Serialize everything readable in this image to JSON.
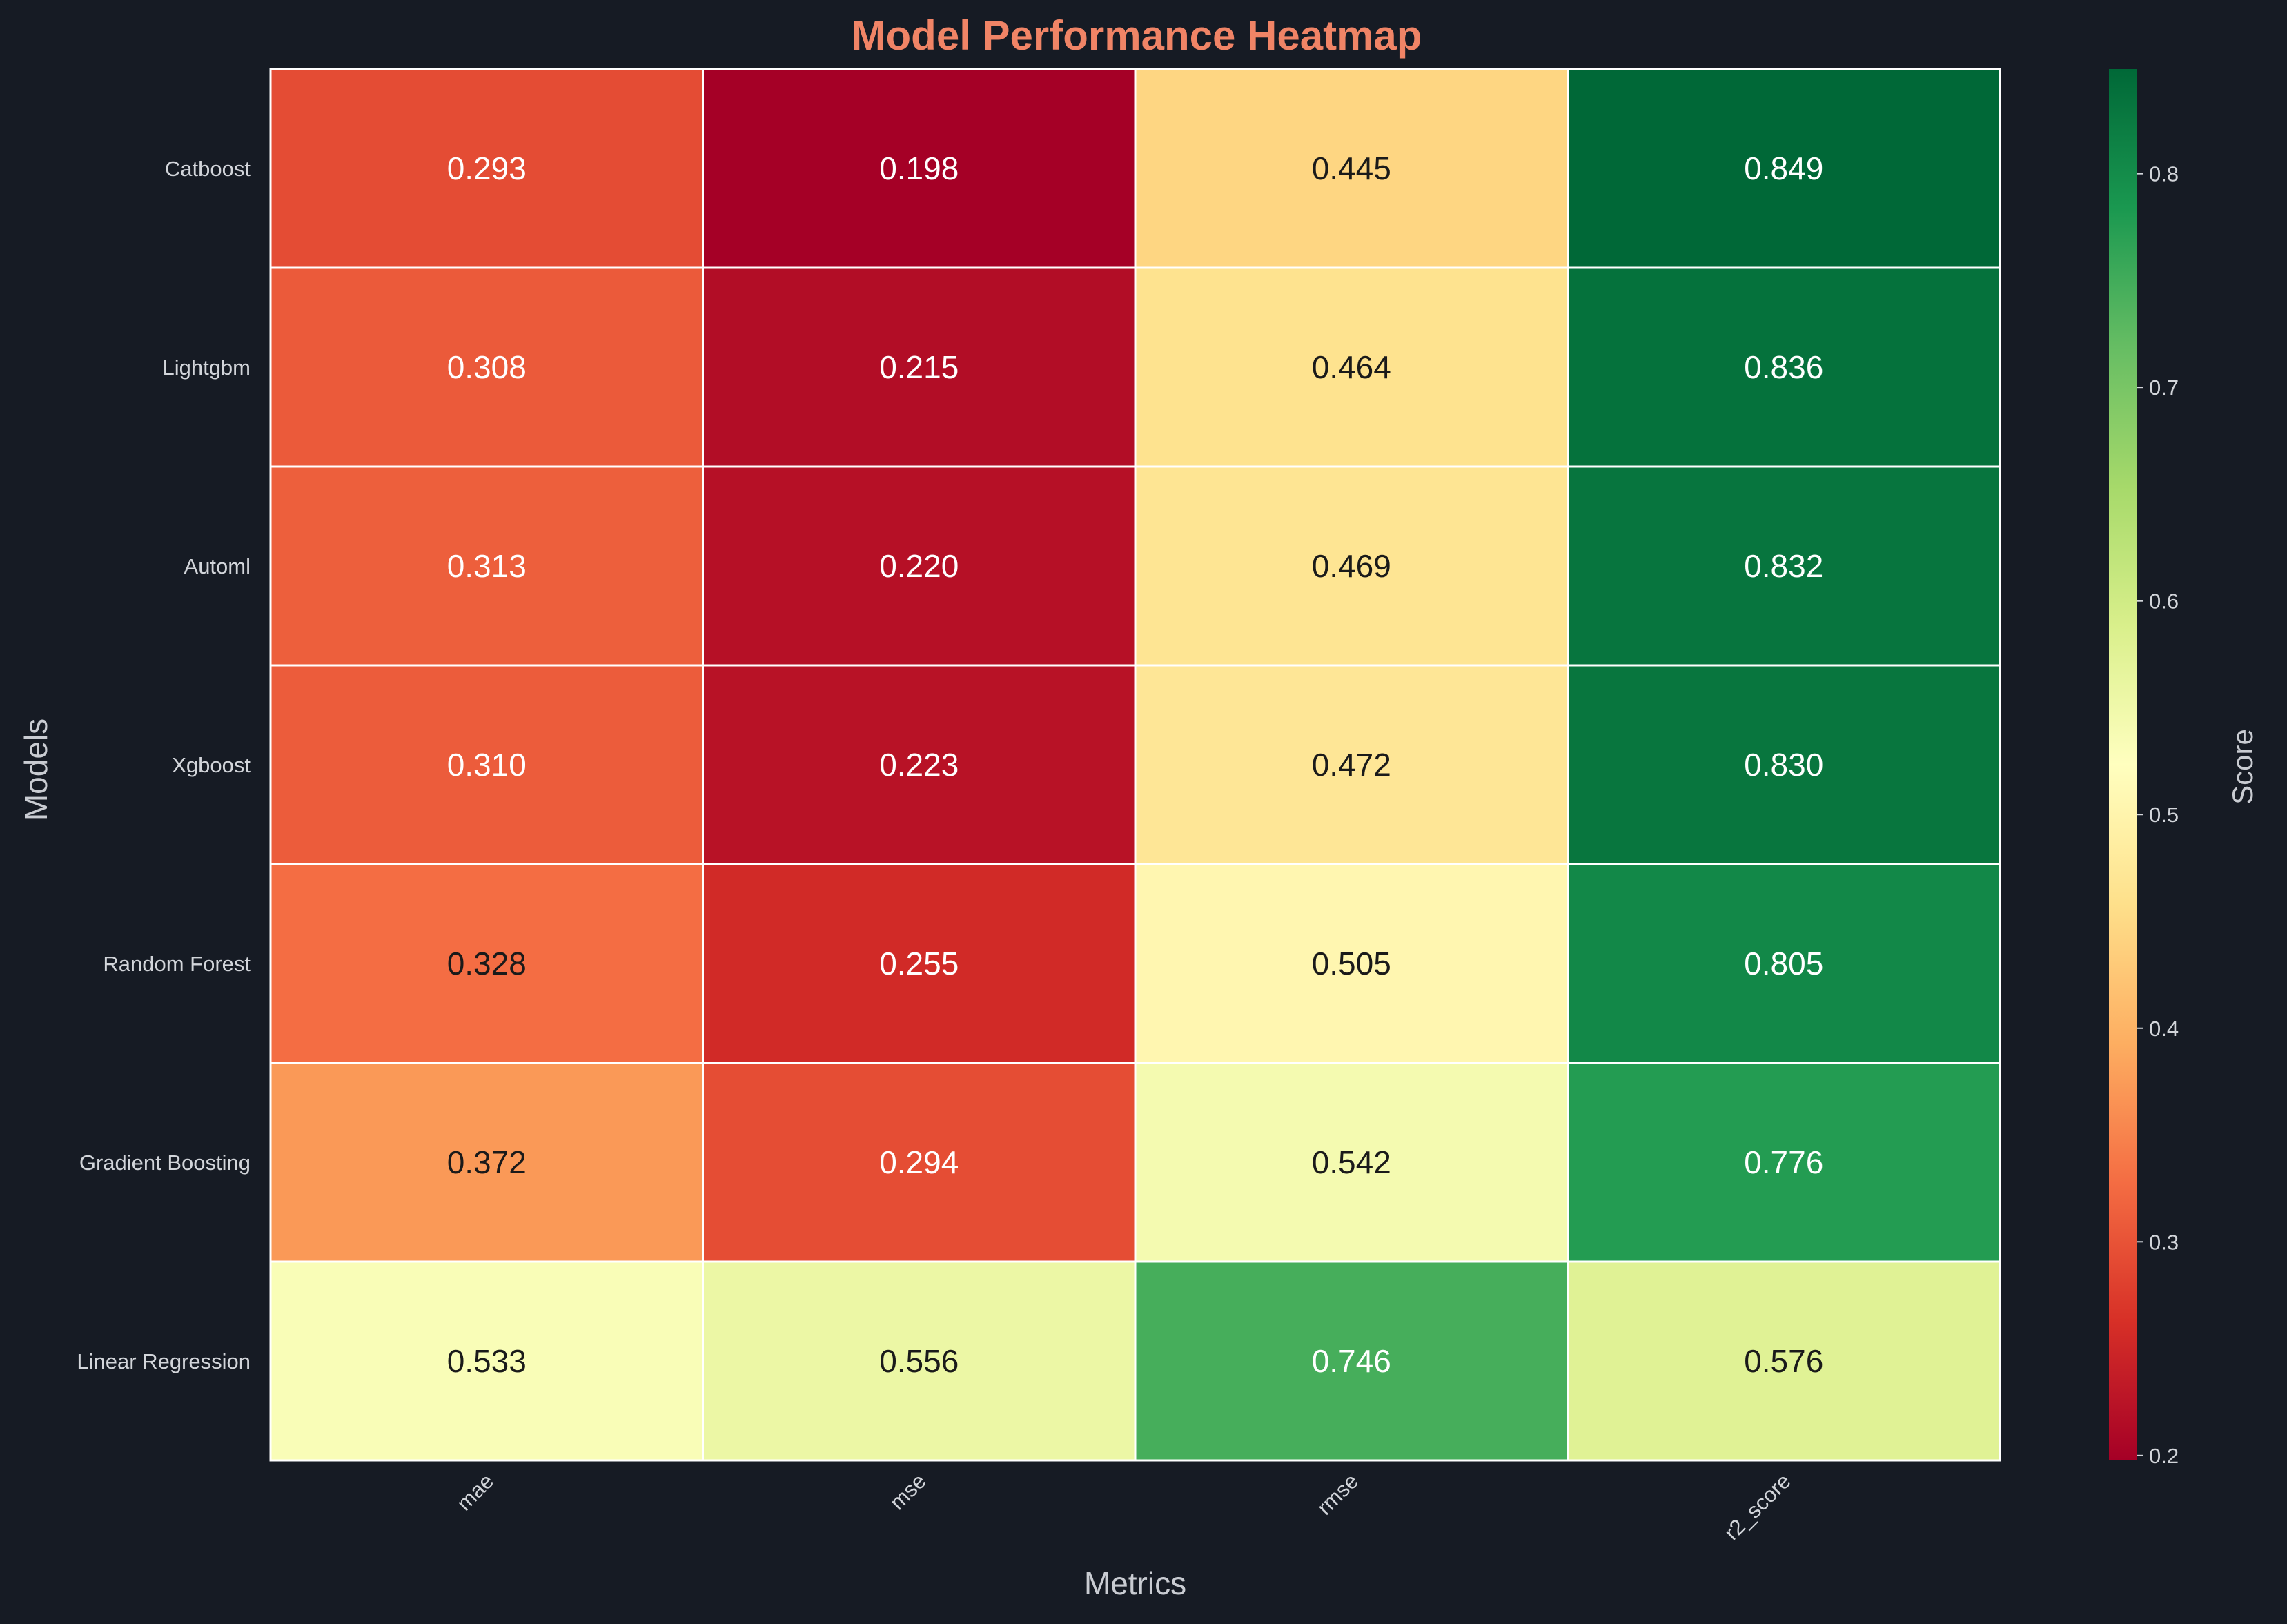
{
  "chart_data": {
    "type": "heatmap",
    "title": "Model Performance Heatmap",
    "xlabel": "Metrics",
    "ylabel": "Models",
    "x_categories": [
      "mae",
      "mse",
      "rmse",
      "r2_score"
    ],
    "y_categories": [
      "Catboost",
      "Lightgbm",
      "Automl",
      "Xgboost",
      "Random Forest",
      "Gradient Boosting",
      "Linear Regression"
    ],
    "values": [
      [
        0.293,
        0.198,
        0.445,
        0.849
      ],
      [
        0.308,
        0.215,
        0.464,
        0.836
      ],
      [
        0.313,
        0.22,
        0.469,
        0.832
      ],
      [
        0.31,
        0.223,
        0.472,
        0.83
      ],
      [
        0.328,
        0.255,
        0.505,
        0.805
      ],
      [
        0.372,
        0.294,
        0.542,
        0.776
      ],
      [
        0.533,
        0.556,
        0.746,
        0.576
      ]
    ],
    "value_labels": [
      [
        "0.293",
        "0.198",
        "0.445",
        "0.849"
      ],
      [
        "0.308",
        "0.215",
        "0.464",
        "0.836"
      ],
      [
        "0.313",
        "0.220",
        "0.469",
        "0.832"
      ],
      [
        "0.310",
        "0.223",
        "0.472",
        "0.830"
      ],
      [
        "0.328",
        "0.255",
        "0.505",
        "0.805"
      ],
      [
        "0.372",
        "0.294",
        "0.542",
        "0.776"
      ],
      [
        "0.533",
        "0.556",
        "0.746",
        "0.576"
      ]
    ],
    "colormap": "RdYlGn",
    "vmin": 0.198,
    "vmax": 0.849,
    "colorbar": {
      "label": "Score",
      "ticks": [
        0.2,
        0.3,
        0.4,
        0.5,
        0.6,
        0.7,
        0.8
      ],
      "tick_labels": [
        "0.2",
        "0.3",
        "0.4",
        "0.5",
        "0.6",
        "0.7",
        "0.8"
      ]
    },
    "grid": false
  },
  "colors": {
    "background": "#161b24",
    "title": "#f08466",
    "cell_border": "#ffffff",
    "text_dark": "#1a1a1a",
    "text_light": "#ffffff"
  }
}
